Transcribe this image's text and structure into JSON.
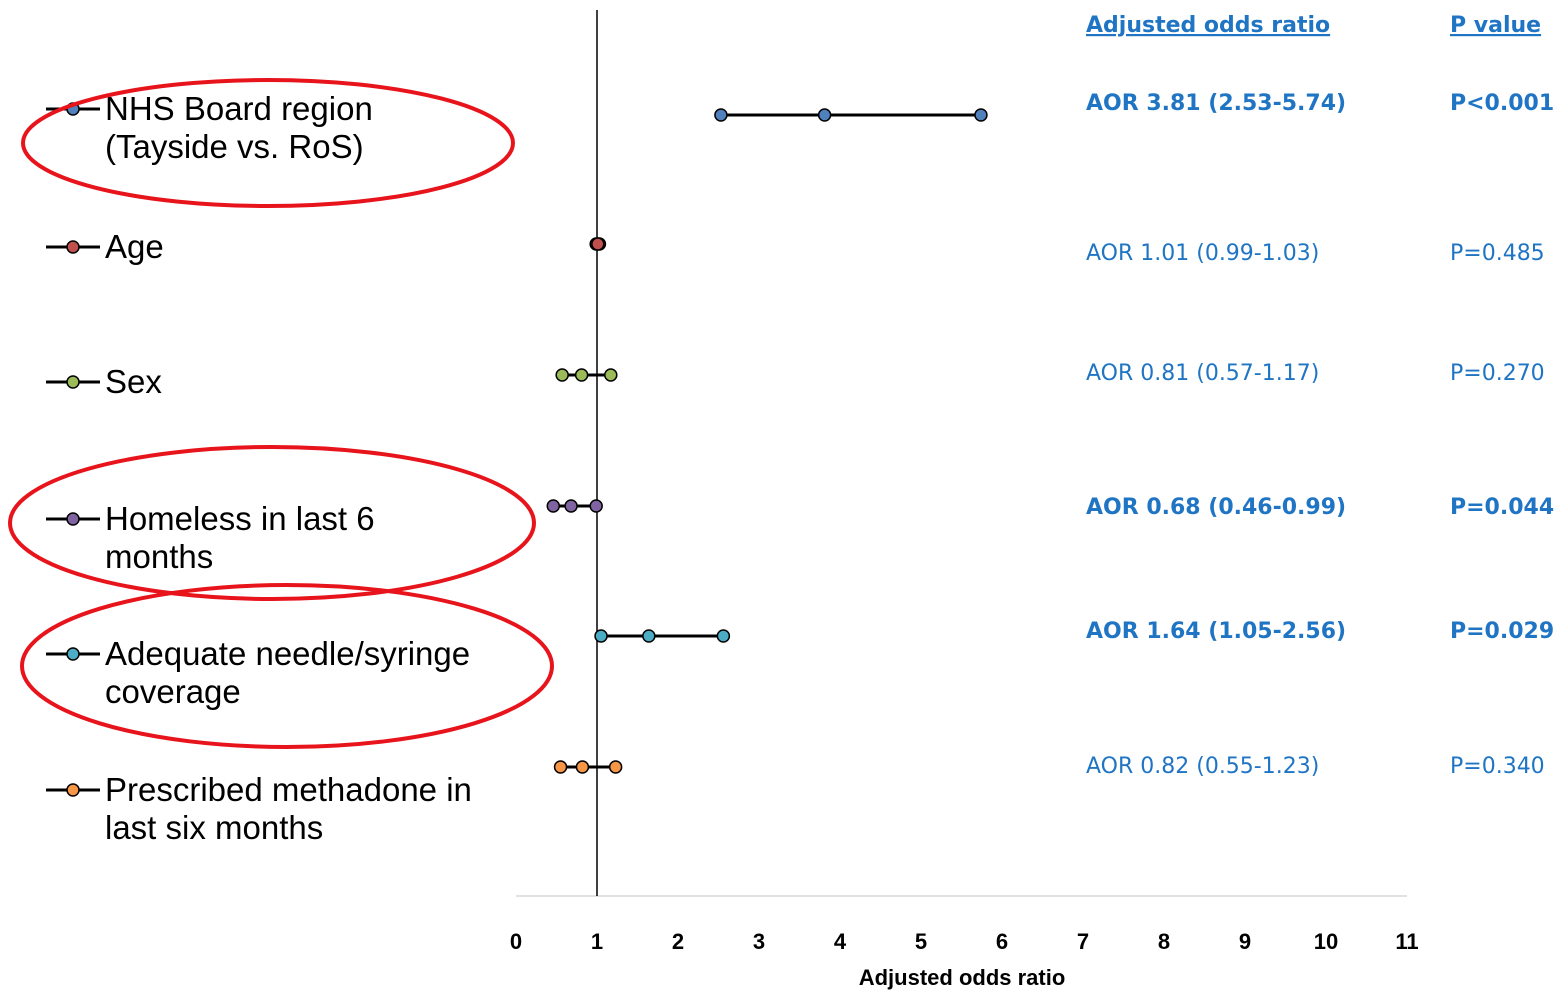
{
  "chart_data": {
    "type": "forest",
    "xlabel": "Adjusted odds ratio",
    "xlim": [
      0,
      11
    ],
    "xticks": [
      "0",
      "1",
      "2",
      "3",
      "4",
      "5",
      "6",
      "7",
      "8",
      "9",
      "10",
      "11"
    ],
    "reference_line": 1,
    "column_headers": {
      "aor": "Adjusted odds ratio",
      "p": "P value"
    },
    "series": [
      {
        "name": [
          "NHS Board region",
          "(Tayside vs. RoS)"
        ],
        "estimate": 3.81,
        "lower": 2.53,
        "upper": 5.74,
        "color": "#4F81BD",
        "aor_text": "AOR 3.81 (2.53-5.74)",
        "p_text": "P<0.001",
        "significant": true,
        "highlighted": true
      },
      {
        "name": [
          "Age"
        ],
        "estimate": 1.01,
        "lower": 0.99,
        "upper": 1.03,
        "color": "#C0504D",
        "aor_text": "AOR 1.01 (0.99-1.03)",
        "p_text": "P=0.485",
        "significant": false,
        "highlighted": false
      },
      {
        "name": [
          "Sex"
        ],
        "estimate": 0.81,
        "lower": 0.57,
        "upper": 1.17,
        "color": "#9BBB59",
        "aor_text": "AOR 0.81 (0.57-1.17)",
        "p_text": "P=0.270",
        "significant": false,
        "highlighted": false
      },
      {
        "name": [
          "Homeless in last 6",
          "months"
        ],
        "estimate": 0.68,
        "lower": 0.46,
        "upper": 0.99,
        "color": "#8064A2",
        "aor_text": "AOR 0.68 (0.46-0.99)",
        "p_text": "P=0.044",
        "significant": true,
        "highlighted": true
      },
      {
        "name": [
          "Adequate needle/syringe",
          "coverage"
        ],
        "estimate": 1.64,
        "lower": 1.05,
        "upper": 2.56,
        "color": "#4BACC6",
        "aor_text": "AOR 1.64 (1.05-2.56)",
        "p_text": "P=0.029",
        "significant": true,
        "highlighted": true
      },
      {
        "name": [
          "Prescribed methadone in",
          "last six months"
        ],
        "estimate": 0.82,
        "lower": 0.55,
        "upper": 1.23,
        "color": "#F79646",
        "aor_text": "AOR 0.82 (0.55-1.23)",
        "p_text": "P=0.340",
        "significant": false,
        "highlighted": false
      }
    ],
    "highlight_color": "#E8141C"
  }
}
